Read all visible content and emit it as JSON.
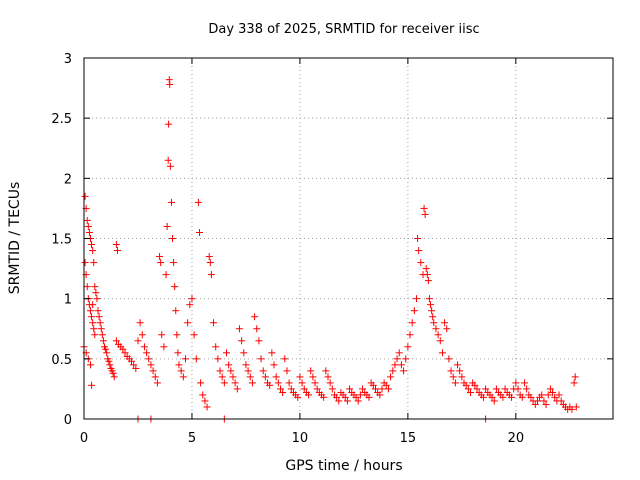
{
  "chart_data": {
    "type": "scatter",
    "title": "Day 338 of 2025, SRMTID for receiver iisc",
    "xlabel": "GPS time / hours",
    "ylabel": "SRMTID / TECUs",
    "xlim": [
      0,
      24.5
    ],
    "ylim": [
      0,
      3
    ],
    "x_ticks": [
      0,
      5,
      10,
      15,
      20
    ],
    "y_ticks": [
      0,
      0.5,
      1,
      1.5,
      2,
      2.5,
      3
    ],
    "x_tick_labels": [
      "0",
      "5",
      "10",
      "15",
      "20"
    ],
    "y_tick_labels": [
      "0",
      "0.5",
      "1",
      "1.5",
      "2",
      "2.5",
      "3"
    ],
    "grid": true,
    "marker": "+",
    "color": "#ff0000",
    "series": [
      {
        "name": "SRMTID",
        "points": [
          [
            0.0,
            0.6
          ],
          [
            0.05,
            1.85
          ],
          [
            0.1,
            1.75
          ],
          [
            0.15,
            1.65
          ],
          [
            0.2,
            1.6
          ],
          [
            0.25,
            1.55
          ],
          [
            0.3,
            1.5
          ],
          [
            0.35,
            1.45
          ],
          [
            0.4,
            1.4
          ],
          [
            0.45,
            1.3
          ],
          [
            0.05,
            1.3
          ],
          [
            0.1,
            1.2
          ],
          [
            0.15,
            1.1
          ],
          [
            0.2,
            1.0
          ],
          [
            0.25,
            0.95
          ],
          [
            0.3,
            0.9
          ],
          [
            0.35,
            0.85
          ],
          [
            0.4,
            0.8
          ],
          [
            0.45,
            0.75
          ],
          [
            0.5,
            0.7
          ],
          [
            0.1,
            0.55
          ],
          [
            0.2,
            0.5
          ],
          [
            0.3,
            0.45
          ],
          [
            0.35,
            0.28
          ],
          [
            0.4,
            0.95
          ],
          [
            0.5,
            1.1
          ],
          [
            0.55,
            1.05
          ],
          [
            0.6,
            1.0
          ],
          [
            0.65,
            0.9
          ],
          [
            0.7,
            0.85
          ],
          [
            0.75,
            0.8
          ],
          [
            0.8,
            0.75
          ],
          [
            0.85,
            0.7
          ],
          [
            0.9,
            0.65
          ],
          [
            0.95,
            0.6
          ],
          [
            1.0,
            0.58
          ],
          [
            1.05,
            0.55
          ],
          [
            1.1,
            0.5
          ],
          [
            1.15,
            0.48
          ],
          [
            1.2,
            0.45
          ],
          [
            1.25,
            0.42
          ],
          [
            1.3,
            0.4
          ],
          [
            1.35,
            0.38
          ],
          [
            1.4,
            0.35
          ],
          [
            1.5,
            1.45
          ],
          [
            1.55,
            1.4
          ],
          [
            1.5,
            0.65
          ],
          [
            1.6,
            0.62
          ],
          [
            1.7,
            0.6
          ],
          [
            1.8,
            0.58
          ],
          [
            1.9,
            0.55
          ],
          [
            2.0,
            0.52
          ],
          [
            2.1,
            0.5
          ],
          [
            2.2,
            0.48
          ],
          [
            2.3,
            0.45
          ],
          [
            2.4,
            0.42
          ],
          [
            2.5,
            0.65
          ],
          [
            2.6,
            0.8
          ],
          [
            2.7,
            0.7
          ],
          [
            2.8,
            0.6
          ],
          [
            2.9,
            0.55
          ],
          [
            3.0,
            0.5
          ],
          [
            3.1,
            0.45
          ],
          [
            3.2,
            0.4
          ],
          [
            3.3,
            0.35
          ],
          [
            3.4,
            0.3
          ],
          [
            3.5,
            1.35
          ],
          [
            3.55,
            1.3
          ],
          [
            3.6,
            0.7
          ],
          [
            3.7,
            0.6
          ],
          [
            3.8,
            1.2
          ],
          [
            3.85,
            1.6
          ],
          [
            3.9,
            2.15
          ],
          [
            3.92,
            2.45
          ],
          [
            3.95,
            2.82
          ],
          [
            3.97,
            2.78
          ],
          [
            4.0,
            2.1
          ],
          [
            4.05,
            1.8
          ],
          [
            4.1,
            1.5
          ],
          [
            4.15,
            1.3
          ],
          [
            4.2,
            1.1
          ],
          [
            4.25,
            0.9
          ],
          [
            4.3,
            0.7
          ],
          [
            4.35,
            0.55
          ],
          [
            4.4,
            0.45
          ],
          [
            4.5,
            0.4
          ],
          [
            4.6,
            0.35
          ],
          [
            4.7,
            0.5
          ],
          [
            4.8,
            0.8
          ],
          [
            4.9,
            0.95
          ],
          [
            5.0,
            1.0
          ],
          [
            5.1,
            0.7
          ],
          [
            5.2,
            0.5
          ],
          [
            5.3,
            1.8
          ],
          [
            5.35,
            1.55
          ],
          [
            5.4,
            0.3
          ],
          [
            5.5,
            0.2
          ],
          [
            5.6,
            0.15
          ],
          [
            5.7,
            0.1
          ],
          [
            5.8,
            1.35
          ],
          [
            5.85,
            1.3
          ],
          [
            5.9,
            1.2
          ],
          [
            6.0,
            0.8
          ],
          [
            6.1,
            0.6
          ],
          [
            6.2,
            0.5
          ],
          [
            6.3,
            0.4
          ],
          [
            6.4,
            0.35
          ],
          [
            6.5,
            0.3
          ],
          [
            6.6,
            0.55
          ],
          [
            6.7,
            0.45
          ],
          [
            6.8,
            0.4
          ],
          [
            6.9,
            0.35
          ],
          [
            7.0,
            0.3
          ],
          [
            7.1,
            0.25
          ],
          [
            7.2,
            0.75
          ],
          [
            7.3,
            0.65
          ],
          [
            7.4,
            0.55
          ],
          [
            7.5,
            0.45
          ],
          [
            7.6,
            0.4
          ],
          [
            7.7,
            0.35
          ],
          [
            7.8,
            0.3
          ],
          [
            7.9,
            0.85
          ],
          [
            8.0,
            0.75
          ],
          [
            8.1,
            0.65
          ],
          [
            8.2,
            0.5
          ],
          [
            8.3,
            0.4
          ],
          [
            8.4,
            0.35
          ],
          [
            8.5,
            0.3
          ],
          [
            8.6,
            0.28
          ],
          [
            8.7,
            0.55
          ],
          [
            8.8,
            0.45
          ],
          [
            8.9,
            0.35
          ],
          [
            9.0,
            0.3
          ],
          [
            9.1,
            0.25
          ],
          [
            9.2,
            0.22
          ],
          [
            9.3,
            0.5
          ],
          [
            9.4,
            0.4
          ],
          [
            9.5,
            0.3
          ],
          [
            9.6,
            0.25
          ],
          [
            9.7,
            0.22
          ],
          [
            9.8,
            0.2
          ],
          [
            9.9,
            0.18
          ],
          [
            10.0,
            0.35
          ],
          [
            10.1,
            0.3
          ],
          [
            10.2,
            0.25
          ],
          [
            10.3,
            0.22
          ],
          [
            10.4,
            0.2
          ],
          [
            10.5,
            0.4
          ],
          [
            10.6,
            0.35
          ],
          [
            10.7,
            0.3
          ],
          [
            10.8,
            0.25
          ],
          [
            10.9,
            0.22
          ],
          [
            11.0,
            0.2
          ],
          [
            11.1,
            0.18
          ],
          [
            11.2,
            0.4
          ],
          [
            11.3,
            0.35
          ],
          [
            11.4,
            0.3
          ],
          [
            11.5,
            0.25
          ],
          [
            11.6,
            0.2
          ],
          [
            11.7,
            0.18
          ],
          [
            11.8,
            0.15
          ],
          [
            11.9,
            0.22
          ],
          [
            12.0,
            0.2
          ],
          [
            12.1,
            0.18
          ],
          [
            12.2,
            0.15
          ],
          [
            12.3,
            0.25
          ],
          [
            12.4,
            0.22
          ],
          [
            12.5,
            0.2
          ],
          [
            12.6,
            0.18
          ],
          [
            12.7,
            0.15
          ],
          [
            12.8,
            0.2
          ],
          [
            12.9,
            0.25
          ],
          [
            13.0,
            0.22
          ],
          [
            13.1,
            0.2
          ],
          [
            13.2,
            0.18
          ],
          [
            13.3,
            0.3
          ],
          [
            13.4,
            0.28
          ],
          [
            13.5,
            0.25
          ],
          [
            13.6,
            0.22
          ],
          [
            13.7,
            0.2
          ],
          [
            13.8,
            0.25
          ],
          [
            13.9,
            0.3
          ],
          [
            14.0,
            0.28
          ],
          [
            14.1,
            0.25
          ],
          [
            14.2,
            0.35
          ],
          [
            14.3,
            0.4
          ],
          [
            14.4,
            0.45
          ],
          [
            14.5,
            0.5
          ],
          [
            14.6,
            0.55
          ],
          [
            14.7,
            0.45
          ],
          [
            14.8,
            0.4
          ],
          [
            14.9,
            0.5
          ],
          [
            15.0,
            0.6
          ],
          [
            15.1,
            0.7
          ],
          [
            15.2,
            0.8
          ],
          [
            15.3,
            0.9
          ],
          [
            15.4,
            1.0
          ],
          [
            15.45,
            1.5
          ],
          [
            15.5,
            1.4
          ],
          [
            15.6,
            1.3
          ],
          [
            15.7,
            1.2
          ],
          [
            15.75,
            1.75
          ],
          [
            15.8,
            1.7
          ],
          [
            15.85,
            1.25
          ],
          [
            15.9,
            1.2
          ],
          [
            15.95,
            1.15
          ],
          [
            16.0,
            1.0
          ],
          [
            16.05,
            0.95
          ],
          [
            16.1,
            0.9
          ],
          [
            16.15,
            0.85
          ],
          [
            16.2,
            0.8
          ],
          [
            16.3,
            0.75
          ],
          [
            16.4,
            0.7
          ],
          [
            16.5,
            0.65
          ],
          [
            16.6,
            0.55
          ],
          [
            16.7,
            0.8
          ],
          [
            16.8,
            0.75
          ],
          [
            16.9,
            0.5
          ],
          [
            17.0,
            0.4
          ],
          [
            17.1,
            0.35
          ],
          [
            17.2,
            0.3
          ],
          [
            17.3,
            0.45
          ],
          [
            17.4,
            0.4
          ],
          [
            17.5,
            0.35
          ],
          [
            17.6,
            0.3
          ],
          [
            17.7,
            0.28
          ],
          [
            17.8,
            0.25
          ],
          [
            17.9,
            0.22
          ],
          [
            18.0,
            0.3
          ],
          [
            18.1,
            0.28
          ],
          [
            18.2,
            0.25
          ],
          [
            18.3,
            0.22
          ],
          [
            18.4,
            0.2
          ],
          [
            18.5,
            0.18
          ],
          [
            18.6,
            0.25
          ],
          [
            18.7,
            0.22
          ],
          [
            18.8,
            0.2
          ],
          [
            18.9,
            0.18
          ],
          [
            19.0,
            0.15
          ],
          [
            19.1,
            0.25
          ],
          [
            19.2,
            0.22
          ],
          [
            19.3,
            0.2
          ],
          [
            19.4,
            0.18
          ],
          [
            19.5,
            0.25
          ],
          [
            19.6,
            0.22
          ],
          [
            19.7,
            0.2
          ],
          [
            19.8,
            0.18
          ],
          [
            19.9,
            0.25
          ],
          [
            20.0,
            0.3
          ],
          [
            20.1,
            0.25
          ],
          [
            20.2,
            0.2
          ],
          [
            20.3,
            0.18
          ],
          [
            20.4,
            0.3
          ],
          [
            20.5,
            0.25
          ],
          [
            20.6,
            0.2
          ],
          [
            20.7,
            0.18
          ],
          [
            20.8,
            0.15
          ],
          [
            20.9,
            0.12
          ],
          [
            21.0,
            0.15
          ],
          [
            21.1,
            0.18
          ],
          [
            21.2,
            0.2
          ],
          [
            21.3,
            0.15
          ],
          [
            21.4,
            0.12
          ],
          [
            21.5,
            0.2
          ],
          [
            21.6,
            0.25
          ],
          [
            21.7,
            0.22
          ],
          [
            21.8,
            0.18
          ],
          [
            21.9,
            0.15
          ],
          [
            22.0,
            0.2
          ],
          [
            22.1,
            0.15
          ],
          [
            22.2,
            0.12
          ],
          [
            22.3,
            0.1
          ],
          [
            22.4,
            0.08
          ],
          [
            22.5,
            0.1
          ],
          [
            22.6,
            0.08
          ],
          [
            22.7,
            0.3
          ],
          [
            22.75,
            0.35
          ],
          [
            22.8,
            0.1
          ],
          [
            2.5,
            0.0
          ],
          [
            3.1,
            0.0
          ],
          [
            6.5,
            0.0
          ],
          [
            18.6,
            0.0
          ]
        ]
      }
    ]
  }
}
